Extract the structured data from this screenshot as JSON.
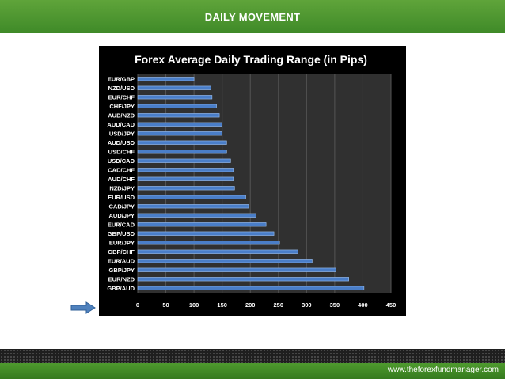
{
  "header": {
    "title": "DAILY MOVEMENT"
  },
  "footer": {
    "url": "www.theforexfundmanager.com"
  },
  "colors": {
    "bar": "#4a7ec8",
    "bar_edge": "#9cc0f0",
    "panel": "#000000",
    "header": "#4a962f"
  },
  "chart_data": {
    "type": "bar",
    "orientation": "horizontal",
    "title": "Forex Average Daily Trading Range (in Pips)",
    "xlabel": "",
    "ylabel": "",
    "xlim": [
      0,
      450
    ],
    "xticks": [
      0,
      50,
      100,
      150,
      200,
      250,
      300,
      350,
      400,
      450
    ],
    "grid": true,
    "legend": "none",
    "categories": [
      "EUR/GBP",
      "NZD/USD",
      "EUR/CHF",
      "CHF/JPY",
      "AUD/NZD",
      "AUD/CAD",
      "USD/JPY",
      "AUD/USD",
      "USD/CHF",
      "USD/CAD",
      "CAD/CHF",
      "AUD/CHF",
      "NZD/JPY",
      "EUR/USD",
      "CAD/JPY",
      "AUD/JPY",
      "EUR/CAD",
      "GBP/USD",
      "EUR/JPY",
      "GBP/CHF",
      "EUR/AUD",
      "GBP/JPY",
      "EUR/NZD",
      "GBP/AUD"
    ],
    "values": [
      100,
      130,
      132,
      140,
      145,
      150,
      150,
      158,
      158,
      165,
      170,
      170,
      172,
      192,
      197,
      210,
      228,
      242,
      252,
      285,
      310,
      352,
      375,
      402
    ]
  }
}
